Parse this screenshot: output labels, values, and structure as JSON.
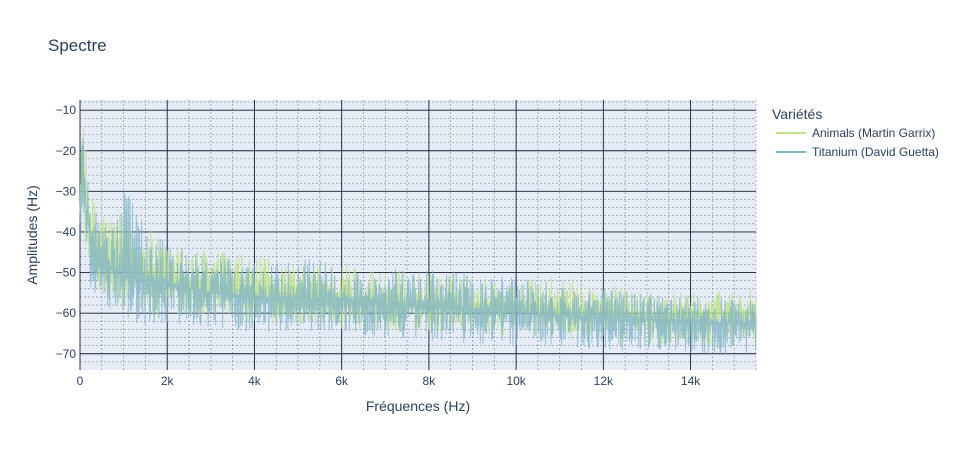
{
  "chart_data": {
    "type": "line",
    "title": "Spectre",
    "xlabel": "Fréquences (Hz)",
    "ylabel": "Amplitudes (Hz)",
    "xlim": [
      0,
      15500
    ],
    "ylim": [
      -74,
      -7.5
    ],
    "x_major_ticks": [
      0,
      2000,
      4000,
      6000,
      8000,
      10000,
      12000,
      14000
    ],
    "x_tick_labels": [
      "0",
      "2k",
      "4k",
      "6k",
      "8k",
      "10k",
      "12k",
      "14k"
    ],
    "y_major_ticks": [
      -10,
      -20,
      -30,
      -40,
      -50,
      -60,
      -70
    ],
    "y_tick_labels": [
      "−10",
      "−20",
      "−30",
      "−40",
      "−50",
      "−60",
      "−70"
    ],
    "grid": true,
    "minor_grid": true,
    "legend": {
      "title": "Variétés",
      "placement": "top-right-outside"
    },
    "series": [
      {
        "name": "Animals (Martin Garrix)",
        "color": "#bfe38a",
        "x": [
          0,
          60,
          120,
          250,
          400,
          700,
          1000,
          1500,
          2000,
          3000,
          4000,
          5000,
          6000,
          7000,
          8000,
          9000,
          10000,
          11000,
          12000,
          13000,
          14000,
          15000,
          15500
        ],
        "mean": [
          -35,
          -20,
          -30,
          -40,
          -45,
          -48,
          -49,
          -51,
          -52,
          -54,
          -55,
          -56,
          -56.5,
          -57.5,
          -58,
          -58.5,
          -59,
          -59.5,
          -60,
          -60.5,
          -60.5,
          -60,
          -60
        ],
        "upper": [
          -24,
          -12,
          -18,
          -30,
          -33,
          -35,
          -36,
          -38,
          -43,
          -44,
          -46,
          -48,
          -47,
          -49,
          -50,
          -50,
          -52,
          -51,
          -53,
          -54,
          -55,
          -54,
          -54
        ],
        "lower": [
          -48,
          -35,
          -43,
          -52,
          -55,
          -58,
          -60,
          -61,
          -62,
          -62.5,
          -63,
          -63,
          -64,
          -64.5,
          -65,
          -65.5,
          -66,
          -66.5,
          -67,
          -67.5,
          -68,
          -68,
          -68
        ]
      },
      {
        "name": "Titanium (David Guetta)",
        "color": "#7fb3c8",
        "x": [
          0,
          60,
          120,
          250,
          400,
          700,
          1000,
          1500,
          2000,
          3000,
          4000,
          5000,
          6000,
          7000,
          8000,
          9000,
          10000,
          11000,
          12000,
          13000,
          14000,
          15000,
          15500
        ],
        "mean": [
          -38,
          -22,
          -33,
          -42,
          -46,
          -49,
          -50,
          -52,
          -53,
          -55,
          -56,
          -56.5,
          -57,
          -58,
          -58.5,
          -59,
          -60,
          -60.5,
          -61,
          -61.5,
          -62,
          -62.5,
          -62.5
        ],
        "upper": [
          -26,
          -11,
          -20,
          -32,
          -35,
          -37,
          -29,
          -38,
          -43,
          -45,
          -47,
          -46,
          -48,
          -49,
          -49,
          -50,
          -51,
          -53,
          -54,
          -55,
          -56,
          -56,
          -57
        ],
        "lower": [
          -50,
          -37,
          -46,
          -54,
          -57,
          -60,
          -62,
          -63,
          -63.5,
          -64,
          -64.5,
          -65,
          -65.5,
          -66,
          -67,
          -67.5,
          -68,
          -68.5,
          -69,
          -70,
          -70.5,
          -70.5,
          -70
        ]
      }
    ],
    "overlap_color": "#6faf8e"
  }
}
